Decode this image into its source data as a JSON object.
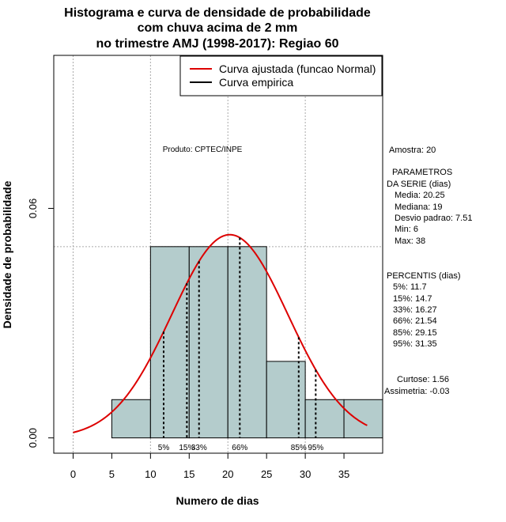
{
  "chart_data": {
    "type": "histogram",
    "title_lines": [
      "Histograma e curva de densidade de probabilidade",
      "com chuva acima de 2 mm",
      "no trimestre AMJ (1998-2017): Regiao 60"
    ],
    "xlabel": "Numero de dias",
    "ylabel": "Densidade de probabilidade",
    "xlim": [
      -2.5,
      40
    ],
    "ylim": [
      -0.004,
      0.1
    ],
    "x_ticks": [
      0,
      5,
      10,
      15,
      20,
      25,
      30,
      35
    ],
    "y_ticks": [
      0.0,
      0.06
    ],
    "y_tick_labels": [
      "0.00",
      "0.06"
    ],
    "bins": [
      {
        "x0": 5,
        "x1": 10,
        "density": 0.01
      },
      {
        "x0": 10,
        "x1": 15,
        "density": 0.05
      },
      {
        "x0": 15,
        "x1": 20,
        "density": 0.05
      },
      {
        "x0": 20,
        "x1": 25,
        "density": 0.05
      },
      {
        "x0": 25,
        "x1": 30,
        "density": 0.02
      },
      {
        "x0": 30,
        "x1": 35,
        "density": 0.01
      },
      {
        "x0": 35,
        "x1": 40,
        "density": 0.01
      }
    ],
    "normal_fit": {
      "mean": 20.25,
      "sd": 7.51,
      "x_from": 0,
      "x_to": 38
    },
    "percentiles": [
      {
        "label": "5%",
        "value": 11.7
      },
      {
        "label": "15%",
        "value": 14.7
      },
      {
        "label": "33%",
        "value": 16.27
      },
      {
        "label": "66%",
        "value": 21.54
      },
      {
        "label": "85%",
        "value": 29.15
      },
      {
        "label": "95%",
        "value": 31.35
      }
    ],
    "grid_x": [
      0,
      10,
      20,
      30
    ],
    "grid_y": 0.05,
    "legend": [
      {
        "label": "Curva ajustada (funcao Normal)",
        "color": "#dd0000"
      },
      {
        "label": "Curva empirica",
        "color": "#000000"
      }
    ],
    "legend_position": "top-right",
    "colors": {
      "bar_fill": "#b4cccc",
      "curve": "#dd0000",
      "grid": "#aaaaaa"
    }
  },
  "annotations": {
    "produto": "Produto: CPTEC/INPE",
    "amostra": "Amostra: 20",
    "parametros_title_1": "PARAMETROS",
    "parametros_title_2": "DA SERIE (dias)",
    "media": "Media: 20.25",
    "mediana": "Mediana: 19",
    "desvio": "Desvio padrao: 7.51",
    "min": "Min: 6",
    "max": "Max: 38",
    "percentis_title": "PERCENTIS (dias)",
    "p5": "5%: 11.7",
    "p15": "15%: 14.7",
    "p33": "33%: 16.27",
    "p66": "66%: 21.54",
    "p85": "85%: 29.15",
    "p95": "95%: 31.35",
    "curtose": "Curtose: 1.56",
    "assimetria": "Assimetria: -0.03"
  }
}
